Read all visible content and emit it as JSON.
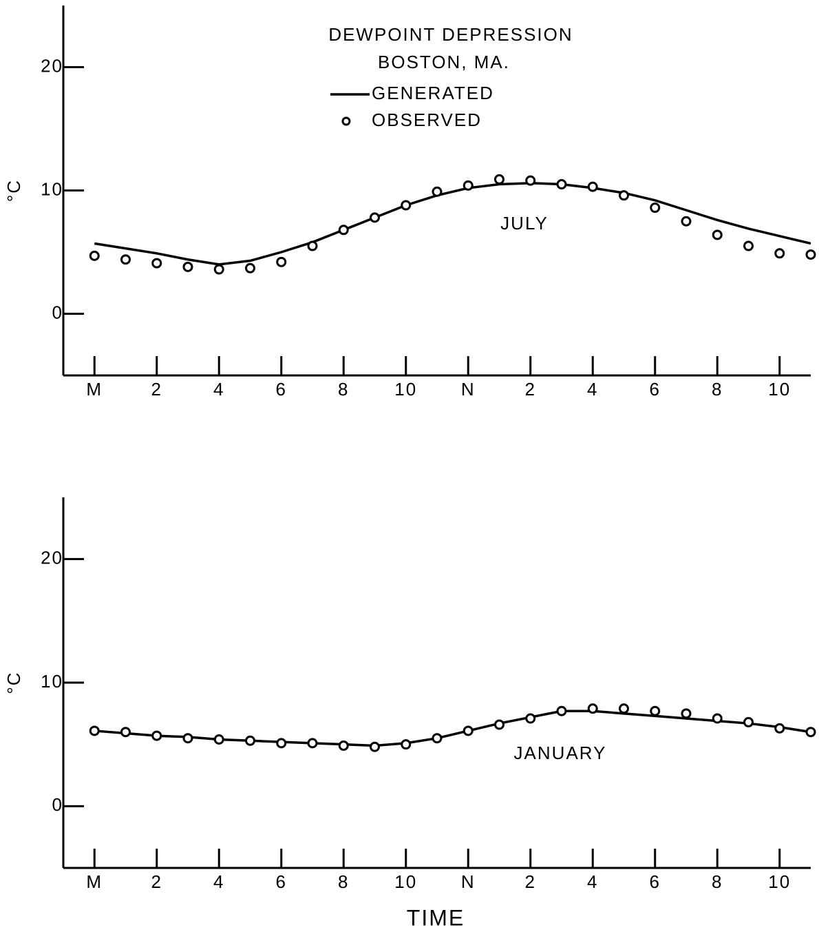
{
  "chart_data": [
    {
      "type": "line",
      "title": "DEWPOINT DEPRESSION",
      "subtitle": "BOSTON, MA.",
      "annotation": "JULY",
      "y_label": "°C",
      "x": [
        0,
        1,
        2,
        3,
        4,
        5,
        6,
        7,
        8,
        9,
        10,
        11,
        12,
        13,
        14,
        15,
        16,
        17,
        18,
        19,
        20,
        21,
        22,
        23
      ],
      "series": [
        {
          "name": "GENERATED",
          "color": "#000000",
          "mode": "line",
          "values": [
            5.7,
            5.3,
            4.9,
            4.4,
            4.0,
            4.3,
            5.0,
            5.8,
            6.8,
            7.8,
            8.8,
            9.6,
            10.2,
            10.5,
            10.6,
            10.5,
            10.2,
            9.8,
            9.2,
            8.4,
            7.6,
            6.9,
            6.3,
            5.7
          ]
        },
        {
          "name": "OBSERVED",
          "color": "#000000",
          "mode": "markers",
          "values": [
            4.7,
            4.4,
            4.1,
            3.8,
            3.6,
            3.7,
            4.2,
            5.5,
            6.8,
            7.8,
            8.8,
            9.9,
            10.4,
            10.9,
            10.8,
            10.5,
            10.3,
            9.6,
            8.6,
            7.5,
            6.4,
            5.5,
            4.9,
            4.8
          ]
        }
      ],
      "xlim": [
        -1,
        23
      ],
      "xticks": [
        {
          "value": 0,
          "label": "M"
        },
        2,
        4,
        6,
        8,
        10,
        {
          "value": 12,
          "label": "N"
        },
        {
          "value": 14,
          "label": "2"
        },
        {
          "value": 16,
          "label": "4"
        },
        {
          "value": 18,
          "label": "6"
        },
        {
          "value": 20,
          "label": "8"
        },
        {
          "value": 22,
          "label": "10"
        }
      ],
      "ylim": [
        -5,
        25
      ],
      "yticks": [
        0,
        10,
        20
      ]
    },
    {
      "type": "line",
      "annotation": "JANUARY",
      "y_label": "°C",
      "x_label": "TIME",
      "x": [
        0,
        1,
        2,
        3,
        4,
        5,
        6,
        7,
        8,
        9,
        10,
        11,
        12,
        13,
        14,
        15,
        16,
        17,
        18,
        19,
        20,
        21,
        22,
        23
      ],
      "series": [
        {
          "color": "#000000",
          "mode": "line",
          "values": [
            6.1,
            5.9,
            5.7,
            5.6,
            5.4,
            5.3,
            5.2,
            5.1,
            5.0,
            4.9,
            5.1,
            5.5,
            6.1,
            6.7,
            7.2,
            7.7,
            7.7,
            7.5,
            7.3,
            7.1,
            6.9,
            6.7,
            6.4,
            6.0
          ]
        },
        {
          "color": "#000000",
          "mode": "markers",
          "values": [
            6.1,
            6.0,
            5.7,
            5.5,
            5.4,
            5.3,
            5.1,
            5.1,
            4.9,
            4.8,
            5.0,
            5.5,
            6.1,
            6.6,
            7.1,
            7.7,
            7.9,
            7.9,
            7.7,
            7.5,
            7.1,
            6.8,
            6.3,
            6.0
          ]
        }
      ],
      "xlim": [
        -1,
        23
      ],
      "xticks": [
        {
          "value": 0,
          "label": "M"
        },
        2,
        4,
        6,
        8,
        10,
        {
          "value": 12,
          "label": "N"
        },
        {
          "value": 14,
          "label": "2"
        },
        {
          "value": 16,
          "label": "4"
        },
        {
          "value": 18,
          "label": "6"
        },
        {
          "value": 20,
          "label": "8"
        },
        {
          "value": 22,
          "label": "10"
        }
      ],
      "ylim": [
        -5,
        25
      ],
      "yticks": [
        0,
        10,
        20
      ]
    }
  ]
}
